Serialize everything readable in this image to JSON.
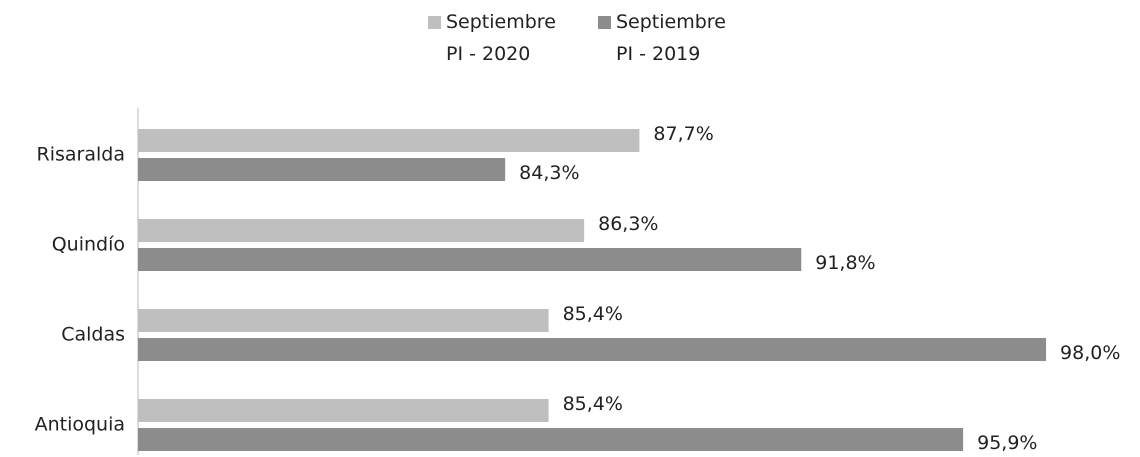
{
  "chart_data": {
    "type": "bar",
    "orientation": "horizontal",
    "categories": [
      "Risaralda",
      "Quindío",
      "Caldas",
      "Antioquia"
    ],
    "series": [
      {
        "name": "Septiembre PI - 2020",
        "color": "#bfbfbf",
        "values": [
          87.7,
          86.3,
          85.4,
          85.4
        ],
        "value_labels": [
          "87,7%",
          "86,3%",
          "85,4%",
          "85,4%"
        ]
      },
      {
        "name": "Septiembre PI - 2019",
        "color": "#8c8c8c",
        "values": [
          84.3,
          91.8,
          98.0,
          95.9
        ],
        "value_labels": [
          "84,3%",
          "91,8%",
          "98,0%",
          "95,9%"
        ]
      }
    ],
    "xlim": [
      75,
      100
    ],
    "legend": "top",
    "grid": false
  }
}
